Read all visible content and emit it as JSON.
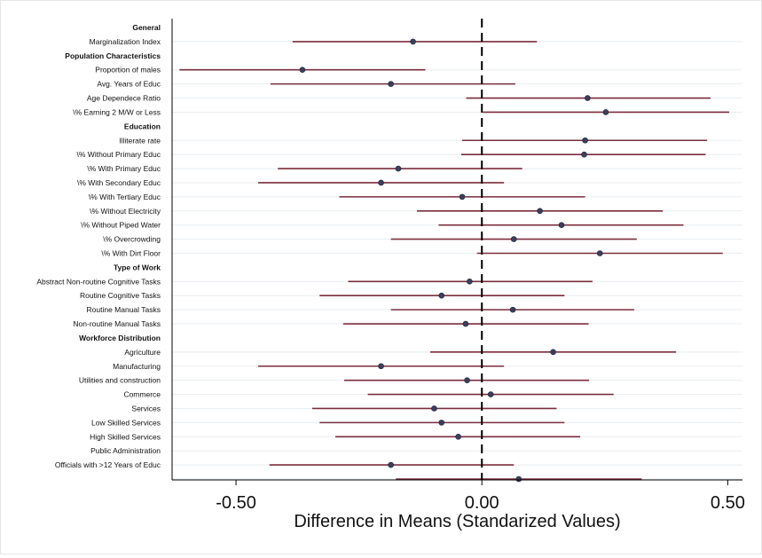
{
  "chart_data": {
    "type": "scatter",
    "subtype": "coefficient-plot-with-confidence-intervals",
    "xlabel": "Difference in Means (Standarized Values)",
    "xlim": [
      -0.63,
      0.53
    ],
    "xticks": [
      -0.5,
      0.0,
      0.5
    ],
    "xtick_labels": [
      "-0.50",
      "0.00",
      "0.50"
    ],
    "reference_line": 0.0,
    "colors": {
      "ci_line": "#7a2d3c",
      "marker": "#3b3f5c",
      "grid": "#e8eef2",
      "axis": "#000000"
    },
    "rows": [
      {
        "kind": "header",
        "label": "General"
      },
      {
        "kind": "item",
        "label": "Marginalization Index",
        "est": -0.14,
        "lo": -0.385,
        "hi": 0.112
      },
      {
        "kind": "header",
        "label": "Population Characteristics"
      },
      {
        "kind": "item",
        "label": "Proportion of males",
        "est": -0.365,
        "lo": -0.615,
        "hi": -0.115
      },
      {
        "kind": "item",
        "label": "Avg. Years of Educ",
        "est": -0.185,
        "lo": -0.43,
        "hi": 0.068
      },
      {
        "kind": "item",
        "label": "Age Dependece Ratio",
        "est": 0.215,
        "lo": -0.032,
        "hi": 0.465
      },
      {
        "kind": "item",
        "label": "\\% Earning 2 M/W or Less",
        "est": 0.252,
        "lo": 0.002,
        "hi": 0.503
      },
      {
        "kind": "header",
        "label": "Education"
      },
      {
        "kind": "item",
        "label": "Illiterate rate",
        "est": 0.21,
        "lo": -0.04,
        "hi": 0.458
      },
      {
        "kind": "item",
        "label": "\\% Without Primary Educ",
        "est": 0.208,
        "lo": -0.042,
        "hi": 0.455
      },
      {
        "kind": "item",
        "label": "\\% With Primary Educ",
        "est": -0.17,
        "lo": -0.415,
        "hi": 0.082
      },
      {
        "kind": "item",
        "label": "\\% With Secondary Educ",
        "est": -0.205,
        "lo": -0.455,
        "hi": 0.045
      },
      {
        "kind": "item",
        "label": "\\% With Tertiary Educ",
        "est": -0.04,
        "lo": -0.29,
        "hi": 0.21
      },
      {
        "kind": "item",
        "label": "\\% Without Electricity",
        "est": 0.118,
        "lo": -0.132,
        "hi": 0.368
      },
      {
        "kind": "item",
        "label": "\\% Without Piped Water",
        "est": 0.162,
        "lo": -0.088,
        "hi": 0.41
      },
      {
        "kind": "item",
        "label": "\\% Overcrowding",
        "est": 0.065,
        "lo": -0.185,
        "hi": 0.315
      },
      {
        "kind": "item",
        "label": "\\% With Dirt Floor",
        "est": 0.24,
        "lo": -0.01,
        "hi": 0.49
      },
      {
        "kind": "header",
        "label": "Type of Work"
      },
      {
        "kind": "item",
        "label": "Abstract Non-routine Cognitive Tasks",
        "est": -0.025,
        "lo": -0.272,
        "hi": 0.225
      },
      {
        "kind": "item",
        "label": "Routine Cognitive Tasks",
        "est": -0.082,
        "lo": -0.33,
        "hi": 0.168
      },
      {
        "kind": "item",
        "label": "Routine Manual Tasks",
        "est": 0.063,
        "lo": -0.185,
        "hi": 0.31
      },
      {
        "kind": "item",
        "label": "Non-routine Manual Tasks",
        "est": -0.033,
        "lo": -0.282,
        "hi": 0.217
      },
      {
        "kind": "header",
        "label": "Workforce Distribution"
      },
      {
        "kind": "item",
        "label": "Agriculture",
        "est": 0.145,
        "lo": -0.105,
        "hi": 0.395
      },
      {
        "kind": "item",
        "label": "Manufacturing",
        "est": -0.205,
        "lo": -0.455,
        "hi": 0.045
      },
      {
        "kind": "item",
        "label": "Utilities and construction",
        "est": -0.03,
        "lo": -0.28,
        "hi": 0.218
      },
      {
        "kind": "item",
        "label": "Commerce",
        "est": 0.018,
        "lo": -0.232,
        "hi": 0.268
      },
      {
        "kind": "item",
        "label": "Services",
        "est": -0.097,
        "lo": -0.345,
        "hi": 0.152
      },
      {
        "kind": "item",
        "label": "Low Skilled Services",
        "est": -0.082,
        "lo": -0.33,
        "hi": 0.168
      },
      {
        "kind": "item",
        "label": "High Skilled Services",
        "est": -0.048,
        "lo": -0.298,
        "hi": 0.2
      },
      {
        "kind": "item",
        "label": "Public Administration",
        "est": null,
        "lo": null,
        "hi": null
      },
      {
        "kind": "item",
        "label": "Officials with >12 Years of Educ",
        "est": -0.185,
        "lo": -0.432,
        "hi": 0.065
      },
      {
        "kind": "item",
        "label": "",
        "est": 0.075,
        "lo": -0.175,
        "hi": 0.325
      }
    ]
  }
}
